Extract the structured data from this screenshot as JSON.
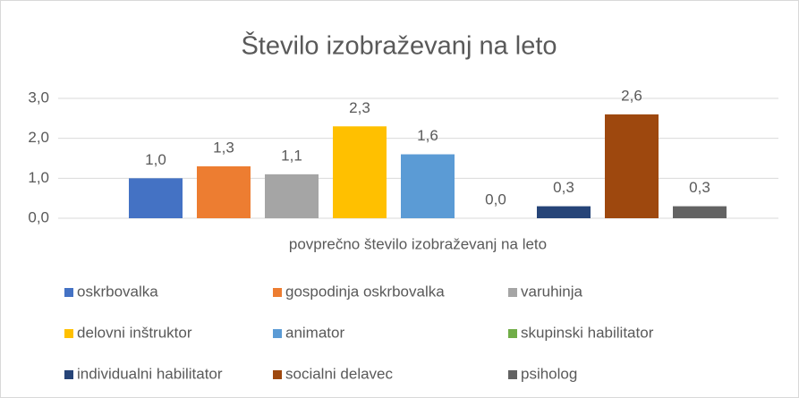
{
  "chart_data": {
    "type": "bar",
    "title": "Število izobraževanj na leto",
    "categories": [
      "povprečno število izobraževanj na leto"
    ],
    "series": [
      {
        "name": "oskrbovalka",
        "color": "#4472c4",
        "values": [
          1.0
        ],
        "value_labels": [
          "1,0"
        ]
      },
      {
        "name": "gospodinja oskrbovalka",
        "color": "#ed7d31",
        "values": [
          1.3
        ],
        "value_labels": [
          "1,3"
        ]
      },
      {
        "name": "varuhinja",
        "color": "#a5a5a5",
        "values": [
          1.1
        ],
        "value_labels": [
          "1,1"
        ]
      },
      {
        "name": "delovni inštruktor",
        "color": "#ffc000",
        "values": [
          2.3
        ],
        "value_labels": [
          "2,3"
        ]
      },
      {
        "name": "animator",
        "color": "#5b9bd5",
        "values": [
          1.6
        ],
        "value_labels": [
          "1,6"
        ]
      },
      {
        "name": "skupinski habilitator",
        "color": "#70ad47",
        "values": [
          0.0
        ],
        "value_labels": [
          "0,0"
        ]
      },
      {
        "name": "individualni habilitator",
        "color": "#264478",
        "values": [
          0.3
        ],
        "value_labels": [
          "0,3"
        ]
      },
      {
        "name": "socialni delavec",
        "color": "#9e480e",
        "values": [
          2.6
        ],
        "value_labels": [
          "2,6"
        ]
      },
      {
        "name": "psiholog",
        "color": "#636363",
        "values": [
          0.3
        ],
        "value_labels": [
          "0,3"
        ]
      }
    ],
    "ylim": [
      0,
      3
    ],
    "yticks": [
      {
        "value": 0,
        "label": "0,0"
      },
      {
        "value": 1,
        "label": "1,0"
      },
      {
        "value": 2,
        "label": "2,0"
      },
      {
        "value": 3,
        "label": "3,0"
      }
    ],
    "grid": true,
    "legend": "bottom"
  }
}
